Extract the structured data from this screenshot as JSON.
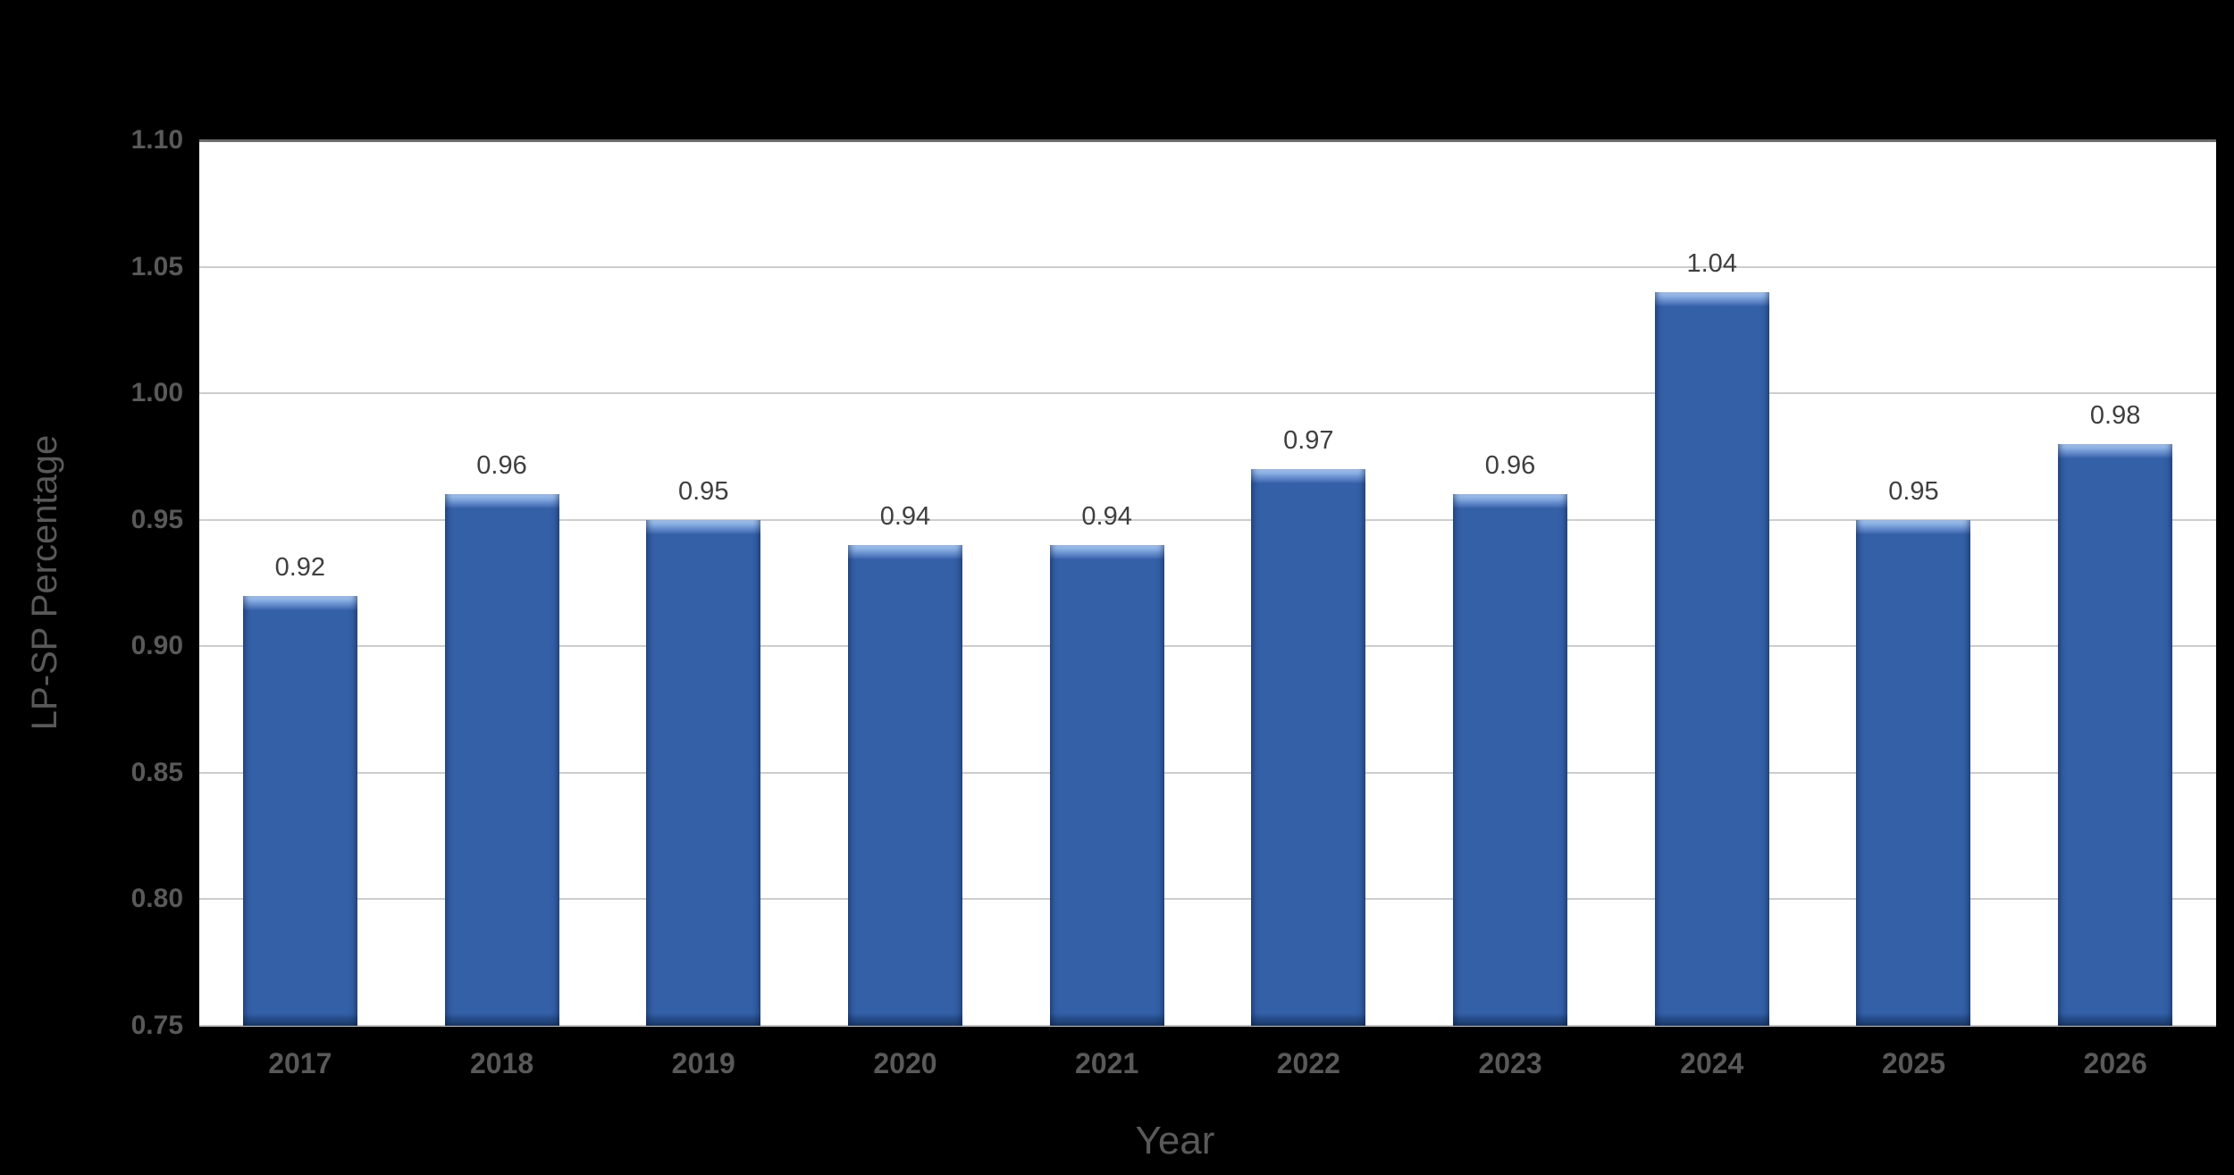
{
  "chart_data": {
    "type": "bar",
    "title": "",
    "categories": [
      "2017",
      "2018",
      "2019",
      "2020",
      "2021",
      "2022",
      "2023",
      "2024",
      "2025",
      "2026"
    ],
    "values": [
      0.92,
      0.96,
      0.95,
      0.94,
      0.94,
      0.97,
      0.96,
      1.04,
      0.95,
      0.98
    ],
    "data_labels": [
      "0.92",
      "0.96",
      "0.95",
      "0.94",
      "0.94",
      "0.97",
      "0.96",
      "1.04",
      "0.95",
      "0.98"
    ],
    "xlabel": "Year",
    "ylabel": "LP-SP Percentage",
    "ylim": [
      0.75,
      1.1
    ],
    "ytick_step": 0.05,
    "yticks": [
      "1.10",
      "1.05",
      "1.00",
      "0.95",
      "0.90",
      "0.85",
      "0.80",
      "0.75"
    ],
    "grid": "horizontal-major",
    "legend": "none",
    "colors": {
      "bar_fill": "#3460A8",
      "bar_bevel_light": "#AECBF2",
      "bar_bevel_dark": "#1D3A68",
      "plot_bg": "#FFFFFF",
      "canvas_bg": "#000000",
      "gridline": "#CDCDCD",
      "tick_text": "#595959",
      "data_label_text": "#3F3F3F",
      "axis_title_text": "#595959"
    }
  }
}
